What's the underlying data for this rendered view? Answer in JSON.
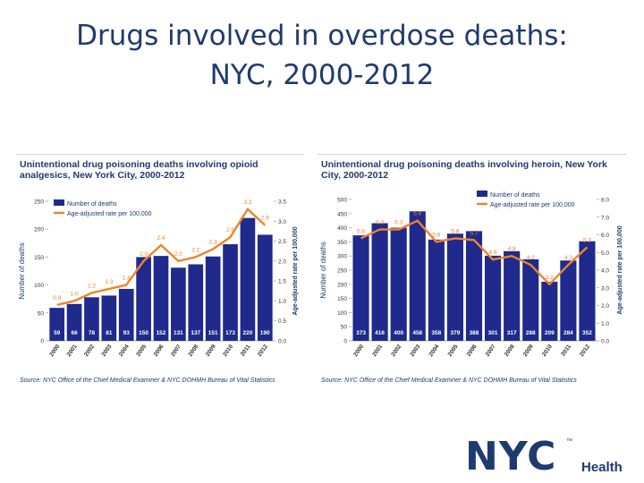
{
  "title_line1": "Drugs involved in overdose deaths:",
  "title_line2": "NYC, 2000-2012",
  "logo": {
    "word": "NYC",
    "sub": "Health",
    "mark": "™"
  },
  "chart_data": [
    {
      "type": "bar",
      "title": "Unintentional drug poisoning deaths involving opioid analgesics, New York City, 2000-2012",
      "source": "Source: NYC Office of the Chief Medical Examiner & NYC DOHMH Bureau of Vital Statistics",
      "categories": [
        "2000",
        "2001",
        "2002",
        "2003",
        "2004",
        "2005",
        "2006",
        "2007",
        "2008",
        "2009",
        "2010",
        "2011",
        "2012"
      ],
      "series": [
        {
          "name": "Number of deaths",
          "type": "bar",
          "color": "#1f2a8c",
          "values": [
            59,
            66,
            78,
            81,
            93,
            150,
            152,
            131,
            137,
            151,
            173,
            220,
            190
          ]
        },
        {
          "name": "Age-adjusted rate per 100,000",
          "type": "line",
          "color": "#f0822a",
          "values": [
            0.9,
            1.0,
            1.2,
            1.3,
            1.4,
            2.0,
            2.4,
            2.0,
            2.1,
            2.3,
            2.6,
            3.3,
            2.9
          ],
          "labels": [
            "0.9",
            "1.0",
            "1.2",
            "1.3",
            "1.4",
            "2.0",
            "2.4",
            "2.0",
            "2.1",
            "2.3",
            "2.6",
            "3.3",
            "2.9"
          ]
        }
      ],
      "ylabel": "Number of deaths",
      "y2label": "Age-adjusted rate per 100,000",
      "ylim": [
        0,
        250
      ],
      "yticks": [
        "0",
        "50",
        "100",
        "150",
        "200",
        "250"
      ],
      "y2lim": [
        0,
        3.5
      ],
      "y2ticks": [
        "0.0",
        "0.5",
        "1.0",
        "1.5",
        "2.0",
        "2.5",
        "3.0",
        "3.5"
      ],
      "legend": "top-left"
    },
    {
      "type": "bar",
      "title": "Unintentional drug poisoning deaths involving heroin, New York City, 2000-2012",
      "source": "Source: NYC Office of the Chief Medical Examiner & NYC DOHMH Bureau of Vital Statistics",
      "categories": [
        "2000",
        "2001",
        "2002",
        "2003",
        "2004",
        "2005",
        "2006",
        "2007",
        "2008",
        "2009",
        "2010",
        "2011",
        "2012"
      ],
      "series": [
        {
          "name": "Number of deaths",
          "type": "bar",
          "color": "#1f2a8c",
          "values": [
            373,
            416,
            400,
            458,
            358,
            379,
            388,
            301,
            317,
            288,
            209,
            284,
            352
          ]
        },
        {
          "name": "Age-adjusted rate per 100,000",
          "type": "line",
          "color": "#f0822a",
          "values": [
            5.8,
            6.3,
            6.3,
            6.8,
            5.6,
            5.8,
            5.7,
            4.6,
            4.8,
            4.3,
            3.2,
            4.3,
            5.3
          ],
          "labels": [
            "5.8",
            "6.3",
            "6.3",
            "6.8",
            "5.6",
            "5.8",
            "5.7",
            "4.6",
            "4.8",
            "4.3",
            "3.2",
            "4.3",
            "5.3"
          ]
        }
      ],
      "ylabel": "Number of deaths",
      "y2label": "Age-adjusted rate per 100,000",
      "ylim": [
        0,
        500
      ],
      "yticks": [
        "0",
        "50",
        "100",
        "150",
        "200",
        "250",
        "300",
        "350",
        "400",
        "450",
        "500"
      ],
      "y2lim": [
        0,
        8.0
      ],
      "y2ticks": [
        "0.0",
        "1.0",
        "2.0",
        "3.0",
        "4.0",
        "5.0",
        "6.0",
        "7.0",
        "8.0"
      ],
      "legend": "top-right"
    }
  ]
}
